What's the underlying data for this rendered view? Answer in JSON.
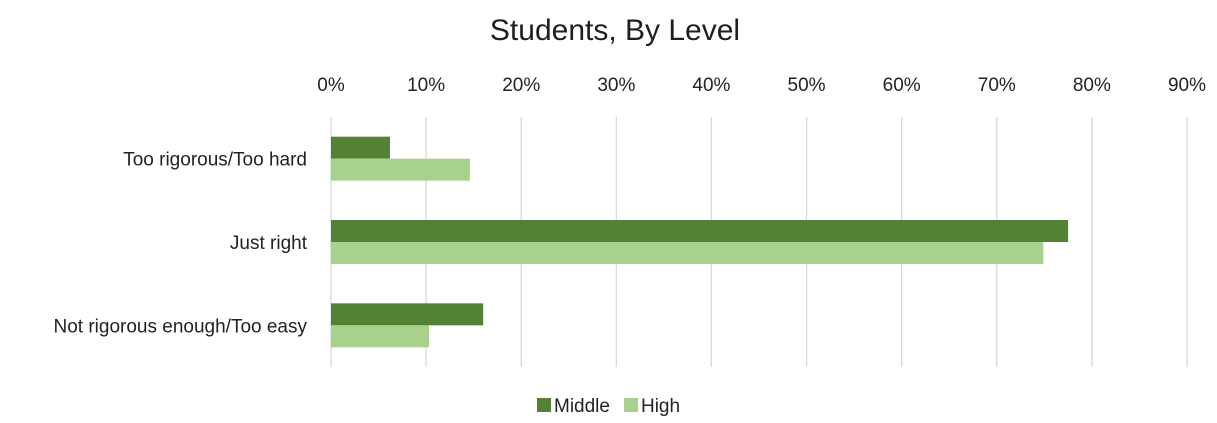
{
  "chart_data": {
    "type": "bar",
    "orientation": "horizontal",
    "title": "Students, By Level",
    "xlabel": "",
    "ylabel": "",
    "categories": [
      "Too rigorous/Too hard",
      "Just right",
      "Not rigorous enough/Too easy"
    ],
    "series": [
      {
        "name": "Middle",
        "color": "#548235",
        "values": [
          6.2,
          77.5,
          16.0
        ]
      },
      {
        "name": "High",
        "color": "#a9d18e",
        "values": [
          14.6,
          74.9,
          10.3
        ]
      }
    ],
    "xlim": [
      0,
      90
    ],
    "x_ticks": [
      0,
      10,
      20,
      30,
      40,
      50,
      60,
      70,
      80,
      90
    ],
    "tick_labels": [
      "0%",
      "10%",
      "20%",
      "30%",
      "40%",
      "50%",
      "60%",
      "70%",
      "80%",
      "90%"
    ],
    "x_axis_position": "top",
    "grid": true,
    "legend_position": "bottom"
  }
}
